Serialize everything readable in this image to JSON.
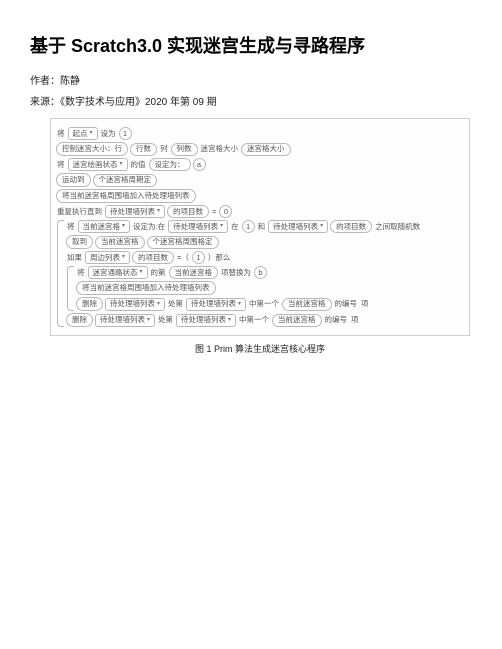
{
  "title": "基于 Scratch3.0 实现迷宫生成与寻路程序",
  "author_label": "作者：",
  "author": "陈静",
  "source_label": "来源：",
  "source": "《数字技术与应用》2020 年第 09 期",
  "fig": {
    "caption": "图 1  Prim 算法生成迷宫核心程序",
    "r1": {
      "a": "将",
      "b": "起点",
      "c": "设为",
      "d": "1"
    },
    "r2": {
      "a": "控制迷宫大小：行",
      "b": "行数",
      "c": "列",
      "d": "列数",
      "e": "迷宫格大小",
      "f": "迷宫格大小"
    },
    "r3": {
      "a": "将",
      "b": "迷宫绘画状态",
      "c": "的值",
      "d": "设定为：",
      "e": "a"
    },
    "r4": {
      "a": "运动到",
      "b": "个迷宫格周期定"
    },
    "r5": {
      "a": "将当前迷宫格周围墙加入待处理墙列表"
    },
    "r6": {
      "a": "重复执行直到",
      "b": "待处理墙列表",
      "c": "的项目数",
      "d": "=",
      "e": "0"
    },
    "r7": {
      "a": "将",
      "b": "当前迷宫格",
      "c": "设定为:在",
      "d": "待处理墙列表",
      "e": "和",
      "f": "在",
      "g": "1",
      "h": "和",
      "i": "待处理墙列表",
      "j": "的项目数",
      "k": "之间取随机数"
    },
    "r8": {
      "a": "取到",
      "b": "当前迷宫格",
      "c": "个迷宫格周围格定"
    },
    "r9": {
      "a": "如果",
      "b": "周边列表",
      "c": "的项目数",
      "d": "=（",
      "e": "1",
      "f": "）那么"
    },
    "r10": {
      "a": "将",
      "b": "迷宫通路状态",
      "c": "的第",
      "d": "当前迷宫格",
      "e": "项替换为",
      "f": "b"
    },
    "r11": {
      "a": "将当前迷宫格周围墙加入待处理墙列表"
    },
    "r12": {
      "a": "删除",
      "b": "待处理墙列表",
      "c": "处第",
      "d": "待处理墙列表",
      "e": "中第一个",
      "f": "当前迷宫格",
      "g": "的编号",
      "h": "项"
    },
    "r13": {
      "a": "删除",
      "b": "待处理墙列表",
      "c": "处第",
      "d": "待处理墙列表",
      "e": "中第一个",
      "f": "当前迷宫格",
      "g": "的编号",
      "h": "项"
    }
  }
}
